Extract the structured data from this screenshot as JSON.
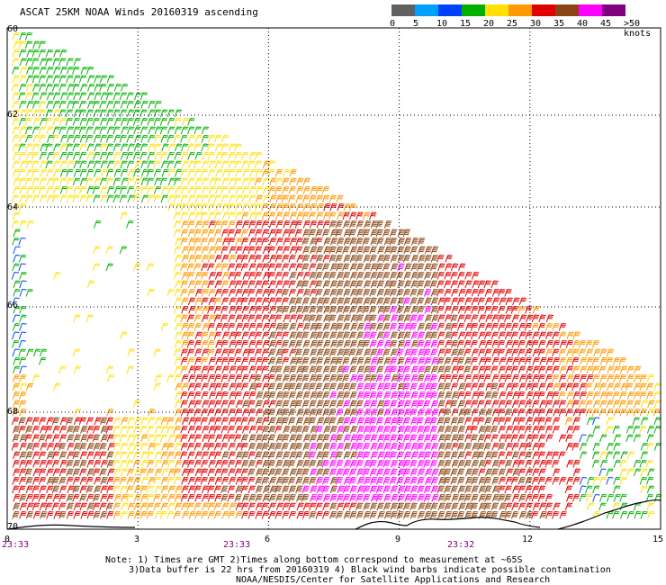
{
  "title": "ASCAT 25KM NOAA Winds 20160319 ascending",
  "color_scale": {
    "colors": [
      "#606060",
      "#00a0ff",
      "#0040ff",
      "#00b000",
      "#ffe000",
      "#ff9900",
      "#e00000",
      "#8b4513",
      "#ff00ff",
      "#800080"
    ],
    "labels": [
      "0",
      "5",
      "10",
      "15",
      "20",
      "25",
      "30",
      "35",
      "40",
      "45",
      ">50 knots"
    ]
  },
  "y_ticks": [
    "60",
    "62",
    "64",
    "66",
    "68",
    "70"
  ],
  "x_ticks": [
    "0",
    "3",
    "6",
    "9",
    "12",
    "15"
  ],
  "time_labels": [
    "23:33",
    "23:33",
    "23:32"
  ],
  "notes": [
    "Note: 1) Times are GMT 2)Times along bottom correspond to measurement at ~65S",
    "3)Data buffer is 22 hrs from 20160319 4) Black wind barbs indicate possible contamination",
    "NOAA/NESDIS/Center for Satellite Applications and Research"
  ],
  "chart_data": {
    "type": "wind-barb-map",
    "product": "ASCAT 25KM NOAA Winds",
    "date": "20160319",
    "pass": "ascending",
    "lat_range": [
      -70,
      -60
    ],
    "lon_range": [
      0,
      15
    ],
    "speed_units": "knots",
    "speed_bins": [
      0,
      5,
      10,
      15,
      20,
      25,
      30,
      35,
      40,
      45,
      50
    ],
    "dominant_speed_knots": [
      25,
      35
    ],
    "swath_edges_deg": [
      [
        0.0,
        -60.0
      ],
      [
        9.0,
        -64.5
      ],
      [
        15.0,
        -67.5
      ],
      [
        15.0,
        -69.9
      ],
      [
        0.0,
        -69.9
      ]
    ],
    "data_gap_region": "0.5-4E, 64.5-68.5S (left side of swath)",
    "coastline": "Antarctic coast along ~70S"
  }
}
